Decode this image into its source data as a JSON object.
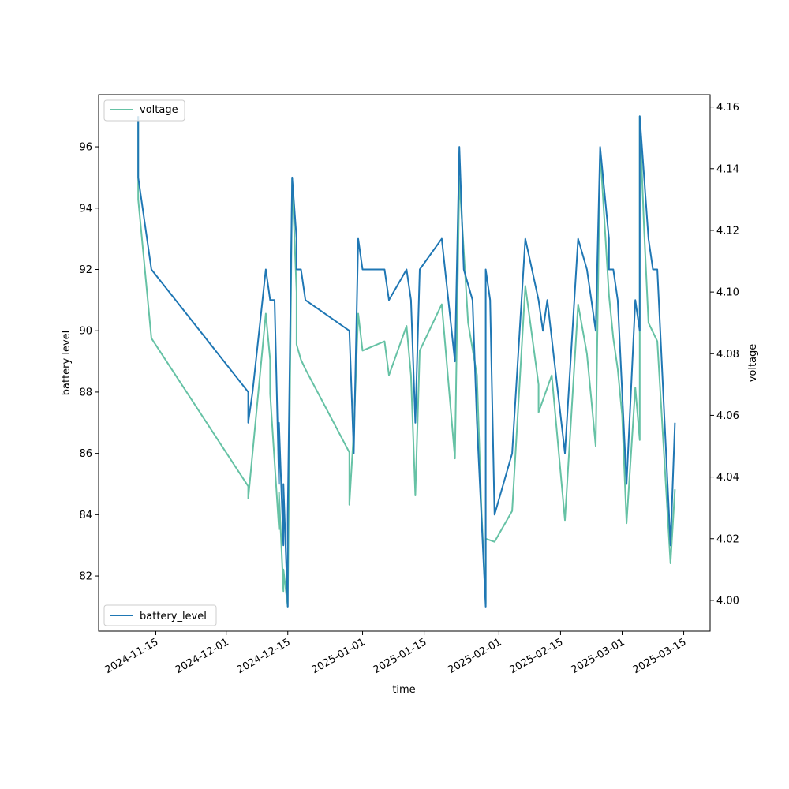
{
  "chart_data": {
    "type": "line",
    "xlabel": "time",
    "ylabel_left": "battery level",
    "ylabel_right": "voltage",
    "x_ticks": [
      "2024-11-15",
      "2024-12-01",
      "2024-12-15",
      "2025-01-01",
      "2025-01-15",
      "2025-02-01",
      "2025-02-15",
      "2025-03-01",
      "2025-03-15"
    ],
    "y_left_ticks": [
      82,
      84,
      86,
      88,
      90,
      92,
      94,
      96
    ],
    "y_right_ticks": [
      4.0,
      4.02,
      4.04,
      4.06,
      4.08,
      4.1,
      4.12,
      4.14,
      4.16
    ],
    "y_right_tick_labels": [
      "4.00",
      "4.02",
      "4.04",
      "4.06",
      "4.08",
      "4.10",
      "4.12",
      "4.14",
      "4.16"
    ],
    "xlim": [
      "2024-11-02",
      "2025-03-21"
    ],
    "ylim_left": [
      80.2,
      97.7
    ],
    "ylim_right": [
      3.99,
      4.164
    ],
    "grid": false,
    "legend_left_placement": "lower-left",
    "legend_right_placement": "upper-left",
    "series": [
      {
        "name": "battery_level",
        "axis": "left",
        "color": "#1f77b4",
        "points": [
          [
            "2024-11-11",
            97
          ],
          [
            "2024-11-11",
            96
          ],
          [
            "2024-11-11",
            96
          ],
          [
            "2024-11-11",
            95
          ],
          [
            "2024-11-14",
            92
          ],
          [
            "2024-12-06",
            88
          ],
          [
            "2024-12-06",
            87
          ],
          [
            "2024-12-07",
            88
          ],
          [
            "2024-12-10",
            92
          ],
          [
            "2024-12-11",
            91
          ],
          [
            "2024-12-12",
            91
          ],
          [
            "2024-12-13",
            85
          ],
          [
            "2024-12-13",
            87
          ],
          [
            "2024-12-14",
            83
          ],
          [
            "2024-12-14",
            85
          ],
          [
            "2024-12-15",
            81
          ],
          [
            "2024-12-15",
            84
          ],
          [
            "2024-12-16",
            95
          ],
          [
            "2024-12-16",
            95
          ],
          [
            "2024-12-17",
            93
          ],
          [
            "2024-12-17",
            92
          ],
          [
            "2024-12-18",
            92
          ],
          [
            "2024-12-19",
            91
          ],
          [
            "2024-12-29",
            90
          ],
          [
            "2024-12-30",
            86
          ],
          [
            "2024-12-31",
            93
          ],
          [
            "2025-01-01",
            92
          ],
          [
            "2025-01-06",
            92
          ],
          [
            "2025-01-07",
            91
          ],
          [
            "2025-01-11",
            92
          ],
          [
            "2025-01-12",
            91
          ],
          [
            "2025-01-13",
            87
          ],
          [
            "2025-01-14",
            92
          ],
          [
            "2025-01-19",
            93
          ],
          [
            "2025-01-22",
            89
          ],
          [
            "2025-01-23",
            96
          ],
          [
            "2025-01-24",
            92
          ],
          [
            "2025-01-26",
            91
          ],
          [
            "2025-01-27",
            87
          ],
          [
            "2025-01-29",
            81
          ],
          [
            "2025-01-29",
            92
          ],
          [
            "2025-01-30",
            91
          ],
          [
            "2025-01-31",
            84
          ],
          [
            "2025-02-04",
            86
          ],
          [
            "2025-02-07",
            93
          ],
          [
            "2025-02-10",
            91
          ],
          [
            "2025-02-11",
            90
          ],
          [
            "2025-02-12",
            91
          ],
          [
            "2025-02-16",
            86
          ],
          [
            "2025-02-19",
            93
          ],
          [
            "2025-02-21",
            92
          ],
          [
            "2025-02-22",
            91
          ],
          [
            "2025-02-23",
            90
          ],
          [
            "2025-02-24",
            96
          ],
          [
            "2025-02-26",
            93
          ],
          [
            "2025-02-26",
            92
          ],
          [
            "2025-02-27",
            92
          ],
          [
            "2025-02-28",
            91
          ],
          [
            "2025-03-01",
            88
          ],
          [
            "2025-03-02",
            85
          ],
          [
            "2025-03-04",
            91
          ],
          [
            "2025-03-05",
            90
          ],
          [
            "2025-03-05",
            97
          ],
          [
            "2025-03-06",
            95
          ],
          [
            "2025-03-07",
            93
          ],
          [
            "2025-03-08",
            92
          ],
          [
            "2025-03-09",
            92
          ],
          [
            "2025-03-12",
            83
          ],
          [
            "2025-03-13",
            87
          ]
        ]
      },
      {
        "name": "voltage",
        "axis": "right",
        "color": "#66c2a5",
        "points": [
          [
            "2024-11-11",
            4.157
          ],
          [
            "2024-11-11",
            4.13
          ],
          [
            "2024-11-14",
            4.085
          ],
          [
            "2024-12-06",
            4.037
          ],
          [
            "2024-12-06",
            4.033
          ],
          [
            "2024-12-10",
            4.093
          ],
          [
            "2024-12-11",
            4.078
          ],
          [
            "2024-12-11",
            4.067
          ],
          [
            "2024-12-13",
            4.023
          ],
          [
            "2024-12-13",
            4.035
          ],
          [
            "2024-12-14",
            4.003
          ],
          [
            "2024-12-14",
            4.01
          ],
          [
            "2024-12-15",
            3.998
          ],
          [
            "2024-12-16",
            4.137
          ],
          [
            "2024-12-17",
            4.1
          ],
          [
            "2024-12-17",
            4.083
          ],
          [
            "2024-12-18",
            4.078
          ],
          [
            "2024-12-19",
            4.075
          ],
          [
            "2024-12-29",
            4.048
          ],
          [
            "2024-12-29",
            4.031
          ],
          [
            "2024-12-30",
            4.055
          ],
          [
            "2024-12-31",
            4.093
          ],
          [
            "2025-01-01",
            4.081
          ],
          [
            "2025-01-06",
            4.084
          ],
          [
            "2025-01-07",
            4.073
          ],
          [
            "2025-01-11",
            4.089
          ],
          [
            "2025-01-12",
            4.073
          ],
          [
            "2025-01-13",
            4.034
          ],
          [
            "2025-01-14",
            4.081
          ],
          [
            "2025-01-19",
            4.096
          ],
          [
            "2025-01-22",
            4.046
          ],
          [
            "2025-01-23",
            4.137
          ],
          [
            "2025-01-25",
            4.09
          ],
          [
            "2025-01-27",
            4.073
          ],
          [
            "2025-01-28",
            4.03
          ],
          [
            "2025-01-29",
            3.999
          ],
          [
            "2025-01-29",
            4.02
          ],
          [
            "2025-01-31",
            4.019
          ],
          [
            "2025-02-04",
            4.029
          ],
          [
            "2025-02-07",
            4.102
          ],
          [
            "2025-02-10",
            4.07
          ],
          [
            "2025-02-10",
            4.061
          ],
          [
            "2025-02-13",
            4.073
          ],
          [
            "2025-02-16",
            4.026
          ],
          [
            "2025-02-19",
            4.096
          ],
          [
            "2025-02-21",
            4.08
          ],
          [
            "2025-02-22",
            4.065
          ],
          [
            "2025-02-23",
            4.05
          ],
          [
            "2025-02-24",
            4.146
          ],
          [
            "2025-02-26",
            4.099
          ],
          [
            "2025-02-27",
            4.085
          ],
          [
            "2025-02-28",
            4.075
          ],
          [
            "2025-03-01",
            4.06
          ],
          [
            "2025-03-02",
            4.025
          ],
          [
            "2025-03-04",
            4.069
          ],
          [
            "2025-03-05",
            4.052
          ],
          [
            "2025-03-05",
            4.157
          ],
          [
            "2025-03-06",
            4.12
          ],
          [
            "2025-03-07",
            4.09
          ],
          [
            "2025-03-09",
            4.084
          ],
          [
            "2025-03-12",
            4.012
          ],
          [
            "2025-03-13",
            4.036
          ]
        ]
      }
    ]
  },
  "legend": {
    "battery_label": "battery_level",
    "voltage_label": "voltage"
  }
}
